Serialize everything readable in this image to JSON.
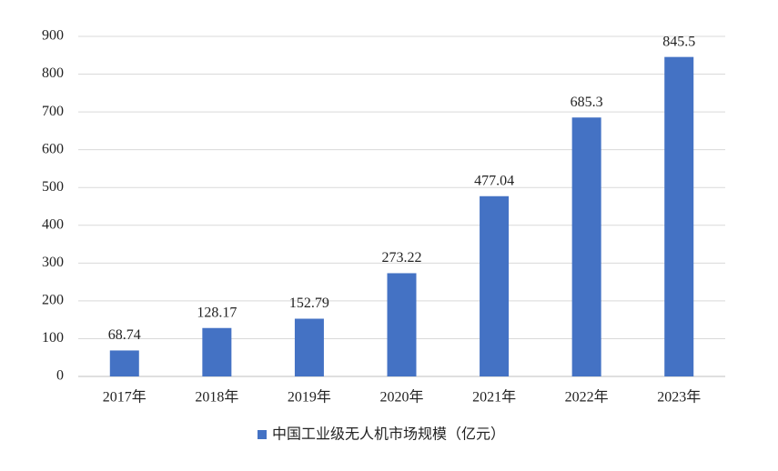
{
  "chart_data": {
    "type": "bar",
    "categories": [
      "2017年",
      "2018年",
      "2019年",
      "2020年",
      "2021年",
      "2022年",
      "2023年"
    ],
    "series": [
      {
        "name": "中国工业级无人机市场规模（亿元）",
        "color": "#4472c4",
        "values": [
          68.74,
          128.17,
          152.79,
          273.22,
          477.04,
          685.3,
          845.5
        ]
      }
    ],
    "ylim": [
      0,
      900
    ],
    "yticks": [
      0,
      100,
      200,
      300,
      400,
      500,
      600,
      700,
      800,
      900
    ],
    "grid": true,
    "legend": "bottom"
  }
}
